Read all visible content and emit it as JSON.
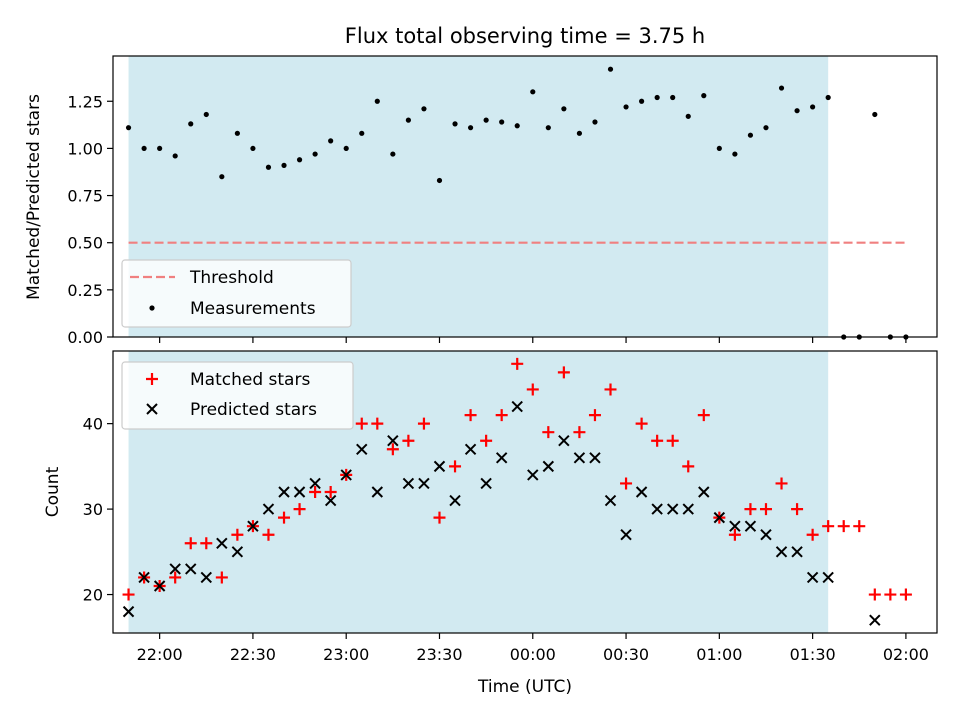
{
  "colors": {
    "shade": "#add8e6",
    "threshold": "#f08080",
    "measurement": "#000000",
    "matched": "#ff0000",
    "predicted": "#000000"
  },
  "chart_data": [
    {
      "type": "scatter",
      "title": "Flux total observing time = 3.75 h",
      "xlabel": "",
      "ylabel": "Matched/Predicted stars",
      "x_ticks": [
        "22:00",
        "22:30",
        "23:00",
        "23:30",
        "00:00",
        "00:30",
        "01:00",
        "01:30",
        "02:00"
      ],
      "y_ticks": [
        "0.00",
        "0.25",
        "0.50",
        "0.75",
        "1.00",
        "1.25"
      ],
      "xlim": [
        "21:45",
        "02:10"
      ],
      "ylim": [
        0,
        1.49
      ],
      "shaded_span": [
        "21:50",
        "01:35"
      ],
      "legend_position": "lower-left",
      "threshold": {
        "name": "Threshold",
        "value": 0.5,
        "x": [
          "21:50",
          "02:00"
        ],
        "style": "dashed"
      },
      "series": [
        {
          "name": "Measurements",
          "x": [
            "21:50",
            "21:53",
            "21:55",
            "21:58",
            "22:00",
            "22:03",
            "22:05",
            "22:08",
            "22:10",
            "22:13",
            "22:15",
            "22:18",
            "22:20",
            "22:23",
            "22:25",
            "22:28",
            "22:30",
            "22:33",
            "22:35",
            "22:38",
            "22:40",
            "22:43",
            "22:45",
            "22:48",
            "22:50",
            "22:53",
            "22:55",
            "22:58",
            "23:00",
            "23:03",
            "23:05",
            "23:08",
            "23:10",
            "23:13",
            "23:15",
            "23:18",
            "23:20",
            "23:23",
            "23:25",
            "23:28",
            "23:30",
            "23:33",
            "23:35",
            "23:38",
            "23:40",
            "23:43",
            "23:45",
            "23:48",
            "23:50",
            "23:53",
            "23:55",
            "23:58",
            "00:00",
            "00:03",
            "00:05",
            "00:08",
            "00:10",
            "00:13",
            "00:15",
            "00:18",
            "00:20",
            "00:23",
            "00:25",
            "00:28",
            "00:30",
            "00:33",
            "00:35",
            "00:38",
            "00:40",
            "00:43",
            "00:45",
            "00:48",
            "00:50",
            "00:53",
            "00:55",
            "00:58",
            "01:00",
            "01:03",
            "01:05",
            "01:08",
            "01:10",
            "01:13",
            "01:15",
            "01:18",
            "01:20",
            "01:23",
            "01:25",
            "01:28",
            "01:30",
            "01:33",
            "01:35"
          ],
          "y": [
            1.11,
            null,
            1.0,
            null,
            1.0,
            null,
            0.96,
            null,
            1.13,
            null,
            1.18,
            null,
            0.85,
            null,
            1.08,
            null,
            1.0,
            null,
            0.9,
            null,
            0.91,
            null,
            0.94,
            null,
            0.97,
            null,
            1.04,
            null,
            1.0,
            null,
            1.08,
            null,
            1.25,
            null,
            0.97,
            null,
            1.15,
            null,
            1.21,
            null,
            0.83,
            null,
            1.13,
            null,
            1.11,
            null,
            1.15,
            null,
            1.14,
            null,
            1.12,
            null,
            1.3,
            null,
            1.11,
            null,
            1.21,
            null,
            1.08,
            null,
            1.14,
            null,
            1.42,
            null,
            1.22,
            null,
            1.25,
            null,
            1.27,
            null,
            1.27,
            null,
            1.17,
            null,
            1.28,
            null,
            1.0,
            null,
            0.97,
            null,
            1.07,
            null,
            1.11,
            null,
            1.32,
            null,
            1.2,
            null,
            1.22,
            null,
            1.27
          ]
        },
        {
          "name": "",
          "x": [
            "01:40",
            "01:45",
            "01:50",
            "01:55",
            "02:00"
          ],
          "y": [
            0.0,
            0.0,
            1.18,
            0.0,
            0.0
          ]
        }
      ]
    },
    {
      "type": "scatter",
      "title": "",
      "xlabel": "Time (UTC)",
      "ylabel": "Count",
      "x_ticks": [
        "22:00",
        "22:30",
        "23:00",
        "23:30",
        "00:00",
        "00:30",
        "01:00",
        "01:30",
        "02:00"
      ],
      "y_ticks": [
        "20",
        "30",
        "40"
      ],
      "xlim": [
        "21:45",
        "02:10"
      ],
      "ylim": [
        15.5,
        48.5
      ],
      "shaded_span": [
        "21:50",
        "01:35"
      ],
      "legend_position": "upper-left",
      "times": [
        "21:50",
        "21:55",
        "22:00",
        "22:05",
        "22:10",
        "22:15",
        "22:20",
        "22:25",
        "22:30",
        "22:35",
        "22:40",
        "22:45",
        "22:50",
        "22:55",
        "23:00",
        "23:05",
        "23:10",
        "23:15",
        "23:20",
        "23:25",
        "23:30",
        "23:35",
        "23:40",
        "23:45",
        "23:50",
        "23:55",
        "00:00",
        "00:05",
        "00:10",
        "00:15",
        "00:20",
        "00:25",
        "00:30",
        "00:35",
        "00:40",
        "00:45",
        "00:50",
        "00:55",
        "01:00",
        "01:05",
        "01:10",
        "01:15",
        "01:20",
        "01:25",
        "01:30",
        "01:35",
        "01:40",
        "01:45",
        "01:50",
        "01:55",
        "02:00"
      ],
      "series": [
        {
          "name": "Matched stars",
          "marker": "+",
          "y": [
            20,
            22,
            21,
            22,
            26,
            26,
            22,
            27,
            28,
            27,
            29,
            30,
            32,
            32,
            34,
            40,
            40,
            37,
            38,
            40,
            29,
            35,
            41,
            38,
            41,
            47,
            44,
            39,
            46,
            39,
            41,
            44,
            33,
            40,
            38,
            38,
            35,
            41,
            29,
            27,
            30,
            30,
            33,
            30,
            27,
            28,
            28,
            28,
            20,
            20,
            20
          ]
        },
        {
          "name": "Predicted stars",
          "marker": "x",
          "y": [
            18,
            22,
            21,
            23,
            23,
            22,
            26,
            25,
            28,
            30,
            32,
            32,
            33,
            31,
            34,
            37,
            32,
            38,
            33,
            33,
            35,
            31,
            37,
            33,
            36,
            42,
            34,
            35,
            38,
            36,
            36,
            31,
            27,
            32,
            30,
            30,
            30,
            32,
            29,
            28,
            28,
            27,
            25,
            25,
            22,
            22,
            null,
            null,
            17,
            null,
            null
          ]
        }
      ]
    }
  ]
}
